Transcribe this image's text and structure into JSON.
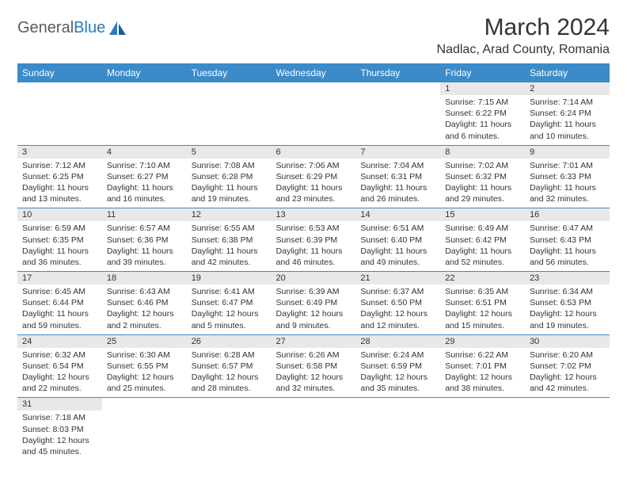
{
  "brand": {
    "name1": "General",
    "name2": "Blue"
  },
  "title": "March 2024",
  "location": "Nadlac, Arad County, Romania",
  "colors": {
    "header_bg": "#3b8bc8",
    "header_text": "#ffffff",
    "daynum_bg": "#e8e8e8",
    "row_border": "#3b8bc8",
    "logo_gray": "#5a5a5a",
    "logo_blue": "#2a7bbf"
  },
  "weekdays": [
    "Sunday",
    "Monday",
    "Tuesday",
    "Wednesday",
    "Thursday",
    "Friday",
    "Saturday"
  ],
  "weeks": [
    [
      null,
      null,
      null,
      null,
      null,
      {
        "n": "1",
        "sr": "Sunrise: 7:15 AM",
        "ss": "Sunset: 6:22 PM",
        "d1": "Daylight: 11 hours",
        "d2": "and 6 minutes."
      },
      {
        "n": "2",
        "sr": "Sunrise: 7:14 AM",
        "ss": "Sunset: 6:24 PM",
        "d1": "Daylight: 11 hours",
        "d2": "and 10 minutes."
      }
    ],
    [
      {
        "n": "3",
        "sr": "Sunrise: 7:12 AM",
        "ss": "Sunset: 6:25 PM",
        "d1": "Daylight: 11 hours",
        "d2": "and 13 minutes."
      },
      {
        "n": "4",
        "sr": "Sunrise: 7:10 AM",
        "ss": "Sunset: 6:27 PM",
        "d1": "Daylight: 11 hours",
        "d2": "and 16 minutes."
      },
      {
        "n": "5",
        "sr": "Sunrise: 7:08 AM",
        "ss": "Sunset: 6:28 PM",
        "d1": "Daylight: 11 hours",
        "d2": "and 19 minutes."
      },
      {
        "n": "6",
        "sr": "Sunrise: 7:06 AM",
        "ss": "Sunset: 6:29 PM",
        "d1": "Daylight: 11 hours",
        "d2": "and 23 minutes."
      },
      {
        "n": "7",
        "sr": "Sunrise: 7:04 AM",
        "ss": "Sunset: 6:31 PM",
        "d1": "Daylight: 11 hours",
        "d2": "and 26 minutes."
      },
      {
        "n": "8",
        "sr": "Sunrise: 7:02 AM",
        "ss": "Sunset: 6:32 PM",
        "d1": "Daylight: 11 hours",
        "d2": "and 29 minutes."
      },
      {
        "n": "9",
        "sr": "Sunrise: 7:01 AM",
        "ss": "Sunset: 6:33 PM",
        "d1": "Daylight: 11 hours",
        "d2": "and 32 minutes."
      }
    ],
    [
      {
        "n": "10",
        "sr": "Sunrise: 6:59 AM",
        "ss": "Sunset: 6:35 PM",
        "d1": "Daylight: 11 hours",
        "d2": "and 36 minutes."
      },
      {
        "n": "11",
        "sr": "Sunrise: 6:57 AM",
        "ss": "Sunset: 6:36 PM",
        "d1": "Daylight: 11 hours",
        "d2": "and 39 minutes."
      },
      {
        "n": "12",
        "sr": "Sunrise: 6:55 AM",
        "ss": "Sunset: 6:38 PM",
        "d1": "Daylight: 11 hours",
        "d2": "and 42 minutes."
      },
      {
        "n": "13",
        "sr": "Sunrise: 6:53 AM",
        "ss": "Sunset: 6:39 PM",
        "d1": "Daylight: 11 hours",
        "d2": "and 46 minutes."
      },
      {
        "n": "14",
        "sr": "Sunrise: 6:51 AM",
        "ss": "Sunset: 6:40 PM",
        "d1": "Daylight: 11 hours",
        "d2": "and 49 minutes."
      },
      {
        "n": "15",
        "sr": "Sunrise: 6:49 AM",
        "ss": "Sunset: 6:42 PM",
        "d1": "Daylight: 11 hours",
        "d2": "and 52 minutes."
      },
      {
        "n": "16",
        "sr": "Sunrise: 6:47 AM",
        "ss": "Sunset: 6:43 PM",
        "d1": "Daylight: 11 hours",
        "d2": "and 56 minutes."
      }
    ],
    [
      {
        "n": "17",
        "sr": "Sunrise: 6:45 AM",
        "ss": "Sunset: 6:44 PM",
        "d1": "Daylight: 11 hours",
        "d2": "and 59 minutes."
      },
      {
        "n": "18",
        "sr": "Sunrise: 6:43 AM",
        "ss": "Sunset: 6:46 PM",
        "d1": "Daylight: 12 hours",
        "d2": "and 2 minutes."
      },
      {
        "n": "19",
        "sr": "Sunrise: 6:41 AM",
        "ss": "Sunset: 6:47 PM",
        "d1": "Daylight: 12 hours",
        "d2": "and 5 minutes."
      },
      {
        "n": "20",
        "sr": "Sunrise: 6:39 AM",
        "ss": "Sunset: 6:49 PM",
        "d1": "Daylight: 12 hours",
        "d2": "and 9 minutes."
      },
      {
        "n": "21",
        "sr": "Sunrise: 6:37 AM",
        "ss": "Sunset: 6:50 PM",
        "d1": "Daylight: 12 hours",
        "d2": "and 12 minutes."
      },
      {
        "n": "22",
        "sr": "Sunrise: 6:35 AM",
        "ss": "Sunset: 6:51 PM",
        "d1": "Daylight: 12 hours",
        "d2": "and 15 minutes."
      },
      {
        "n": "23",
        "sr": "Sunrise: 6:34 AM",
        "ss": "Sunset: 6:53 PM",
        "d1": "Daylight: 12 hours",
        "d2": "and 19 minutes."
      }
    ],
    [
      {
        "n": "24",
        "sr": "Sunrise: 6:32 AM",
        "ss": "Sunset: 6:54 PM",
        "d1": "Daylight: 12 hours",
        "d2": "and 22 minutes."
      },
      {
        "n": "25",
        "sr": "Sunrise: 6:30 AM",
        "ss": "Sunset: 6:55 PM",
        "d1": "Daylight: 12 hours",
        "d2": "and 25 minutes."
      },
      {
        "n": "26",
        "sr": "Sunrise: 6:28 AM",
        "ss": "Sunset: 6:57 PM",
        "d1": "Daylight: 12 hours",
        "d2": "and 28 minutes."
      },
      {
        "n": "27",
        "sr": "Sunrise: 6:26 AM",
        "ss": "Sunset: 6:58 PM",
        "d1": "Daylight: 12 hours",
        "d2": "and 32 minutes."
      },
      {
        "n": "28",
        "sr": "Sunrise: 6:24 AM",
        "ss": "Sunset: 6:59 PM",
        "d1": "Daylight: 12 hours",
        "d2": "and 35 minutes."
      },
      {
        "n": "29",
        "sr": "Sunrise: 6:22 AM",
        "ss": "Sunset: 7:01 PM",
        "d1": "Daylight: 12 hours",
        "d2": "and 38 minutes."
      },
      {
        "n": "30",
        "sr": "Sunrise: 6:20 AM",
        "ss": "Sunset: 7:02 PM",
        "d1": "Daylight: 12 hours",
        "d2": "and 42 minutes."
      }
    ],
    [
      {
        "n": "31",
        "sr": "Sunrise: 7:18 AM",
        "ss": "Sunset: 8:03 PM",
        "d1": "Daylight: 12 hours",
        "d2": "and 45 minutes."
      },
      null,
      null,
      null,
      null,
      null,
      null
    ]
  ]
}
